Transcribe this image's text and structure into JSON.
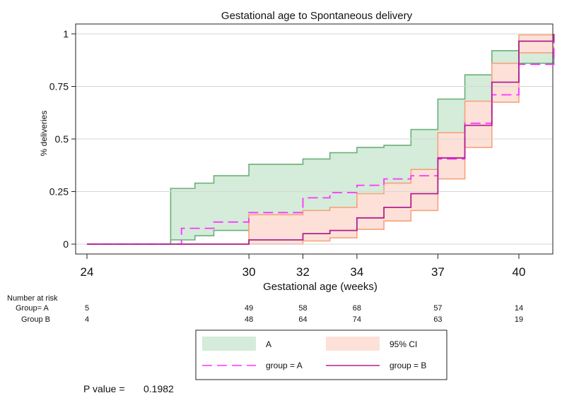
{
  "chart_data": {
    "type": "line",
    "title": "Gestational age to Spontaneous delivery",
    "xlabel": "Gestational age (weeks)",
    "ylabel": "%  deliveries",
    "xlim": [
      24,
      41.3
    ],
    "ylim": [
      0,
      1
    ],
    "x_ticks": [
      24,
      30,
      32,
      34,
      37,
      40
    ],
    "y_ticks": [
      0,
      0.25,
      0.5,
      0.75,
      1
    ],
    "y_tick_labels": [
      "0",
      "0.25",
      "0.5",
      "0.75",
      "1"
    ],
    "grid": true,
    "series": [
      {
        "name": "group = A",
        "style": "dashed",
        "color": "#ff33ff",
        "x": [
          24,
          27.1,
          27.5,
          28.7,
          30,
          32,
          33,
          34,
          35,
          36,
          37,
          38,
          39,
          40,
          41.3
        ],
        "y": [
          0,
          0,
          0.075,
          0.105,
          0.15,
          0.22,
          0.245,
          0.28,
          0.31,
          0.325,
          0.405,
          0.575,
          0.71,
          0.855,
          0.97
        ]
      },
      {
        "name": "group = B",
        "style": "solid",
        "color": "#b0208f",
        "x": [
          24,
          27.1,
          30,
          32,
          33,
          34,
          35,
          36,
          37,
          38,
          39,
          40,
          41.3
        ],
        "y": [
          0,
          0,
          0.02,
          0.05,
          0.065,
          0.125,
          0.175,
          0.24,
          0.41,
          0.565,
          0.77,
          0.965,
          1
        ]
      }
    ],
    "bands": [
      {
        "name": "A",
        "label": "A",
        "color": "#d4ecd9",
        "edge": "#6ab07a",
        "x": [
          24,
          27.1,
          28,
          28.7,
          30,
          32,
          33,
          34,
          35,
          36,
          37,
          38,
          39,
          40,
          41.3
        ],
        "lower": [
          0,
          0.02,
          0.04,
          0.065,
          0.14,
          0.15,
          0.17,
          0.2,
          0.23,
          0.29,
          0.43,
          0.6,
          0.75,
          0.86,
          0.93
        ],
        "upper": [
          0,
          0.265,
          0.29,
          0.325,
          0.38,
          0.405,
          0.435,
          0.46,
          0.47,
          0.545,
          0.69,
          0.805,
          0.92,
          0.97,
          1
        ]
      },
      {
        "name": "B",
        "label": "95% CI",
        "color": "#fde1d8",
        "edge": "#f7a27c",
        "x": [
          24,
          27.1,
          30,
          32,
          33,
          34,
          35,
          36,
          37,
          38,
          39,
          40,
          41.3
        ],
        "lower": [
          0,
          0,
          0,
          0.015,
          0.03,
          0.07,
          0.11,
          0.16,
          0.31,
          0.46,
          0.675,
          0.91,
          0.94
        ],
        "upper": [
          0,
          0,
          0.14,
          0.16,
          0.175,
          0.24,
          0.29,
          0.355,
          0.53,
          0.68,
          0.86,
          0.995,
          1
        ]
      }
    ],
    "legend": {
      "position": "bottom",
      "entries": [
        "A",
        "95% CI",
        "group = A",
        "group = B"
      ]
    }
  },
  "risk_table": {
    "heading": "Number at risk",
    "rows": [
      {
        "label": "Group= A",
        "values": [
          {
            "x": 24,
            "v": "5"
          },
          {
            "x": 30,
            "v": "49"
          },
          {
            "x": 32,
            "v": "58"
          },
          {
            "x": 34,
            "v": "68"
          },
          {
            "x": 37,
            "v": "57"
          },
          {
            "x": 40,
            "v": "14"
          }
        ]
      },
      {
        "label": "Group B",
        "values": [
          {
            "x": 24,
            "v": "4"
          },
          {
            "x": 30,
            "v": "48"
          },
          {
            "x": 32,
            "v": "64"
          },
          {
            "x": 34,
            "v": "74"
          },
          {
            "x": 37,
            "v": "63"
          },
          {
            "x": 40,
            "v": "19"
          }
        ]
      }
    ]
  },
  "pvalue": {
    "label": "P value =",
    "value": "0.1982"
  }
}
